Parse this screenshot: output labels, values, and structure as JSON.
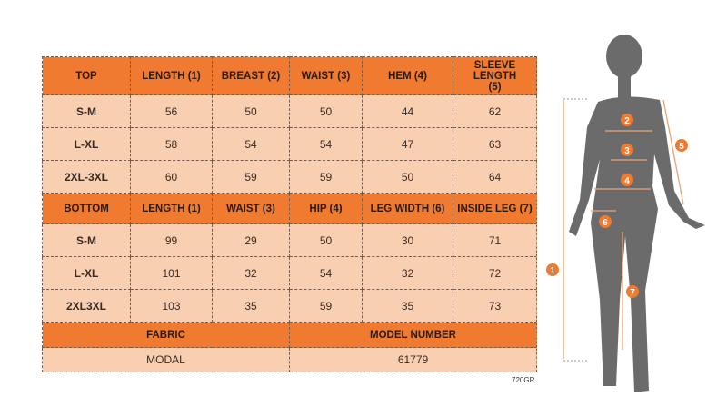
{
  "top": {
    "headers": [
      "TOP",
      "LENGTH (1)",
      "BREAST (2)",
      "WAIST (3)",
      "HEM (4)",
      "SLEEVE LENGTH (5)"
    ],
    "rows": [
      [
        "S-M",
        "56",
        "50",
        "50",
        "44",
        "62"
      ],
      [
        "L-XL",
        "58",
        "54",
        "54",
        "47",
        "63"
      ],
      [
        "2XL-3XL",
        "60",
        "59",
        "59",
        "50",
        "64"
      ]
    ]
  },
  "bottom": {
    "headers": [
      "BOTTOM",
      "LENGTH (1)",
      "WAIST (3)",
      "HIP (4)",
      "LEG WIDTH (6)",
      "INSIDE LEG (7)"
    ],
    "rows": [
      [
        "S-M",
        "99",
        "29",
        "50",
        "30",
        "71"
      ],
      [
        "L-XL",
        "101",
        "32",
        "54",
        "32",
        "72"
      ],
      [
        "2XL3XL",
        "103",
        "35",
        "59",
        "35",
        "73"
      ]
    ]
  },
  "info": {
    "headers": [
      "FABRIC",
      "MODEL NUMBER"
    ],
    "values": [
      "MODAL",
      "61779"
    ]
  },
  "code": "720GR",
  "diagram": {
    "markers": [
      "1",
      "2",
      "3",
      "4",
      "5",
      "6",
      "7"
    ]
  },
  "colors": {
    "header": "#ef7a30",
    "cell": "#f9cfb2",
    "silhouette": "#6b6b6b"
  }
}
